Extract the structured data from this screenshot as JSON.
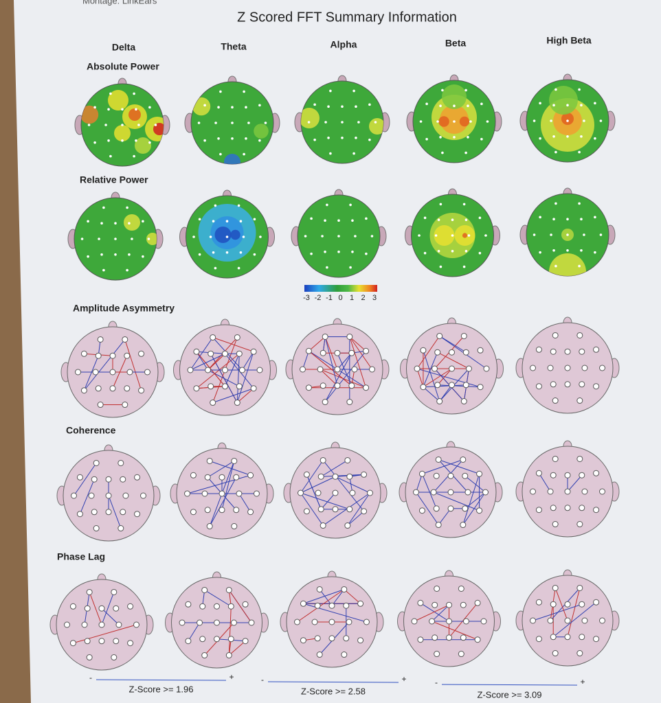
{
  "header": {
    "montage": "Montage: LinkEars",
    "title": "Z Scored FFT Summary Information"
  },
  "columns": [
    "Delta",
    "Theta",
    "Alpha",
    "Beta",
    "High Beta"
  ],
  "rows": [
    "Absolute Power",
    "Relative Power",
    "Amplitude Asymmetry",
    "Coherence",
    "Phase Lag"
  ],
  "color_scale": {
    "ticks": [
      -3,
      -2,
      -1,
      0,
      1,
      2,
      3
    ]
  },
  "thresholds": [
    {
      "minus": "-",
      "plus": "+",
      "label": "Z-Score >= 1.96"
    },
    {
      "minus": "-",
      "plus": "+",
      "label": "Z-Score >= 2.58"
    },
    {
      "minus": "-",
      "plus": "+",
      "label": "Z-Score >= 3.09"
    }
  ]
}
